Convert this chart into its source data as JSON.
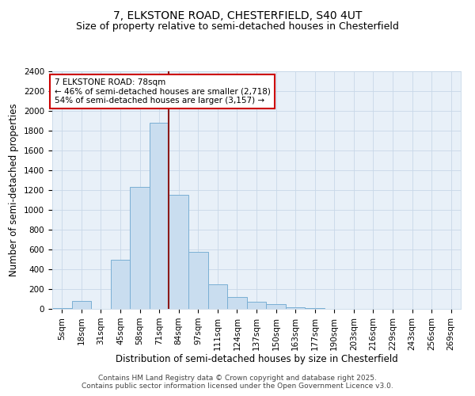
{
  "title_line1": "7, ELKSTONE ROAD, CHESTERFIELD, S40 4UT",
  "title_line2": "Size of property relative to semi-detached houses in Chesterfield",
  "xlabel": "Distribution of semi-detached houses by size in Chesterfield",
  "ylabel": "Number of semi-detached properties",
  "categories": [
    "5sqm",
    "18sqm",
    "31sqm",
    "45sqm",
    "58sqm",
    "71sqm",
    "84sqm",
    "97sqm",
    "111sqm",
    "124sqm",
    "137sqm",
    "150sqm",
    "163sqm",
    "177sqm",
    "190sqm",
    "203sqm",
    "216sqm",
    "229sqm",
    "243sqm",
    "256sqm",
    "269sqm"
  ],
  "values": [
    10,
    80,
    0,
    500,
    1230,
    1880,
    1150,
    580,
    245,
    120,
    70,
    45,
    15,
    10,
    0,
    0,
    0,
    0,
    0,
    0,
    0
  ],
  "bar_color": "#c9ddef",
  "bar_edge_color": "#7aafd4",
  "vline_color": "#8b1a1a",
  "vline_x_index": 5.5,
  "annotation_text": "7 ELKSTONE ROAD: 78sqm\n← 46% of semi-detached houses are smaller (2,718)\n54% of semi-detached houses are larger (3,157) →",
  "annotation_box_facecolor": "#ffffff",
  "annotation_box_edgecolor": "#cc0000",
  "ylim": [
    0,
    2400
  ],
  "yticks": [
    0,
    200,
    400,
    600,
    800,
    1000,
    1200,
    1400,
    1600,
    1800,
    2000,
    2200,
    2400
  ],
  "grid_color": "#c8d8e8",
  "background_color": "#e8f0f8",
  "fig_facecolor": "#ffffff",
  "footer_line1": "Contains HM Land Registry data © Crown copyright and database right 2025.",
  "footer_line2": "Contains public sector information licensed under the Open Government Licence v3.0.",
  "title_fontsize": 10,
  "subtitle_fontsize": 9,
  "axis_label_fontsize": 8.5,
  "tick_fontsize": 7.5,
  "annotation_fontsize": 7.5,
  "footer_fontsize": 6.5
}
